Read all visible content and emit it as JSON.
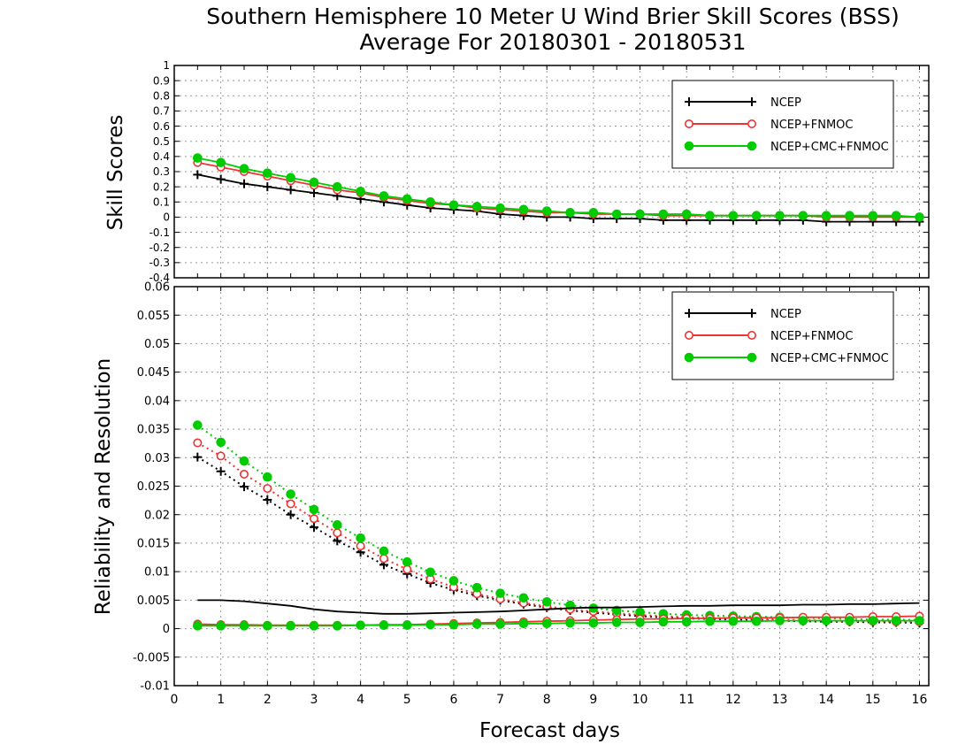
{
  "chart_data": [
    {
      "type": "line",
      "title": "Southern Hemisphere 10 Meter U Wind Brier Skill Scores (BSS)",
      "subtitle": "Average For 20180301 - 20180531",
      "ylabel": "Skill Scores",
      "xlim": [
        0,
        16.2
      ],
      "ylim": [
        -0.4,
        1
      ],
      "yticks": [
        -0.4,
        -0.3,
        -0.2,
        -0.1,
        0,
        0.1,
        0.2,
        0.3,
        0.4,
        0.5,
        0.6,
        0.7,
        0.8,
        0.9,
        1
      ],
      "ytick_labels": [
        "-0.4",
        "-0.3",
        "-0.2",
        "-0.1",
        "0",
        "0.1",
        "0.2",
        "0.3",
        "0.4",
        "0.5",
        "0.6",
        "0.7",
        "0.8",
        "0.9",
        "1"
      ],
      "grid": true,
      "legend_position": "top-right",
      "x": [
        0.5,
        1,
        1.5,
        2,
        2.5,
        3,
        3.5,
        4,
        4.5,
        5,
        5.5,
        6,
        6.5,
        7,
        7.5,
        8,
        8.5,
        9,
        9.5,
        10,
        10.5,
        11,
        11.5,
        12,
        12.5,
        13,
        13.5,
        14,
        14.5,
        15,
        15.5,
        16
      ],
      "series": [
        {
          "name": "NCEP",
          "color": "#000000",
          "marker": "plus",
          "linestyle": "solid",
          "values": [
            0.28,
            0.25,
            0.22,
            0.2,
            0.18,
            0.16,
            0.14,
            0.12,
            0.1,
            0.08,
            0.06,
            0.05,
            0.04,
            0.02,
            0.01,
            0.0,
            0.0,
            -0.01,
            -0.01,
            -0.01,
            -0.02,
            -0.02,
            -0.02,
            -0.02,
            -0.02,
            -0.02,
            -0.02,
            -0.03,
            -0.03,
            -0.03,
            -0.03,
            -0.03
          ]
        },
        {
          "name": "NCEP+FNMOC",
          "color": "#ee3333",
          "marker": "open-circle",
          "linestyle": "solid",
          "values": [
            0.36,
            0.33,
            0.3,
            0.27,
            0.24,
            0.21,
            0.18,
            0.16,
            0.13,
            0.11,
            0.09,
            0.08,
            0.06,
            0.05,
            0.04,
            0.03,
            0.03,
            0.02,
            0.02,
            0.02,
            0.01,
            0.01,
            0.01,
            0.01,
            0.01,
            0.01,
            0.01,
            0.0,
            0.0,
            0.0,
            0.0,
            0.0
          ]
        },
        {
          "name": "NCEP+CMC+FNMOC",
          "color": "#00cc00",
          "marker": "filled-circle",
          "linestyle": "solid",
          "values": [
            0.39,
            0.36,
            0.32,
            0.29,
            0.26,
            0.23,
            0.2,
            0.17,
            0.14,
            0.12,
            0.1,
            0.08,
            0.07,
            0.06,
            0.05,
            0.04,
            0.03,
            0.03,
            0.02,
            0.02,
            0.02,
            0.02,
            0.01,
            0.01,
            0.01,
            0.01,
            0.01,
            0.01,
            0.01,
            0.01,
            0.01,
            0.0
          ]
        }
      ]
    },
    {
      "type": "line",
      "ylabel": "Reliability and Resolution",
      "xlabel": "Forecast days",
      "xlim": [
        0,
        16.2
      ],
      "ylim": [
        -0.01,
        0.06
      ],
      "xticks": [
        0,
        1,
        2,
        3,
        4,
        5,
        6,
        7,
        8,
        9,
        10,
        11,
        12,
        13,
        14,
        15,
        16
      ],
      "xtick_labels": [
        "0",
        "1",
        "2",
        "3",
        "4",
        "5",
        "6",
        "7",
        "8",
        "9",
        "10",
        "11",
        "12",
        "13",
        "14",
        "15",
        "16"
      ],
      "yticks": [
        -0.01,
        -0.005,
        0,
        0.005,
        0.01,
        0.015,
        0.02,
        0.025,
        0.03,
        0.035,
        0.04,
        0.045,
        0.05,
        0.055,
        0.06
      ],
      "ytick_labels": [
        "-0.01",
        "-0.005",
        "0",
        "0.005",
        "0.01",
        "0.015",
        "0.02",
        "0.025",
        "0.03",
        "0.035",
        "0.04",
        "0.045",
        "0.05",
        "0.055",
        "0.06"
      ],
      "grid": true,
      "legend_position": "top-right",
      "x": [
        0.5,
        1,
        1.5,
        2,
        2.5,
        3,
        3.5,
        4,
        4.5,
        5,
        5.5,
        6,
        6.5,
        7,
        7.5,
        8,
        8.5,
        9,
        9.5,
        10,
        10.5,
        11,
        11.5,
        12,
        12.5,
        13,
        13.5,
        14,
        14.5,
        15,
        15.5,
        16
      ],
      "legend": [
        {
          "name": "NCEP",
          "color": "#000000",
          "marker": "plus"
        },
        {
          "name": "NCEP+FNMOC",
          "color": "#ee3333",
          "marker": "open-circle"
        },
        {
          "name": "NCEP+CMC+FNMOC",
          "color": "#00cc00",
          "marker": "filled-circle"
        }
      ],
      "series": [
        {
          "legend_index": 0,
          "color": "#000000",
          "marker": "plus",
          "linestyle": "dotted",
          "values": [
            0.0301,
            0.0276,
            0.0249,
            0.0226,
            0.02,
            0.0178,
            0.0154,
            0.0134,
            0.0112,
            0.0096,
            0.008,
            0.0068,
            0.0058,
            0.005,
            0.0043,
            0.0037,
            0.0032,
            0.0028,
            0.0025,
            0.0022,
            0.002,
            0.0018,
            0.0017,
            0.0016,
            0.0015,
            0.0014,
            0.0013,
            0.0012,
            0.0012,
            0.0011,
            0.0011,
            0.001
          ]
        },
        {
          "legend_index": 1,
          "color": "#ee3333",
          "marker": "open-circle",
          "linestyle": "dotted",
          "values": [
            0.0326,
            0.0303,
            0.0271,
            0.0246,
            0.0219,
            0.0193,
            0.0168,
            0.0145,
            0.0123,
            0.0104,
            0.0087,
            0.0073,
            0.0061,
            0.0052,
            0.0045,
            0.0039,
            0.0034,
            0.003,
            0.0027,
            0.0024,
            0.0022,
            0.002,
            0.0019,
            0.0018,
            0.0017,
            0.0016,
            0.0015,
            0.0014,
            0.0013,
            0.0013,
            0.0012,
            0.0012
          ]
        },
        {
          "legend_index": 2,
          "color": "#00cc00",
          "marker": "filled-circle",
          "linestyle": "dotted",
          "values": [
            0.0357,
            0.0327,
            0.0294,
            0.0266,
            0.0236,
            0.0209,
            0.0182,
            0.0159,
            0.0136,
            0.0117,
            0.0099,
            0.0084,
            0.0072,
            0.0062,
            0.0054,
            0.0047,
            0.0041,
            0.0036,
            0.0032,
            0.0029,
            0.0026,
            0.0024,
            0.0023,
            0.0022,
            0.0021,
            0.002,
            0.0019,
            0.0018,
            0.0017,
            0.0016,
            0.0016,
            0.0015
          ]
        },
        {
          "legend_index": 0,
          "color": "#000000",
          "marker": "none",
          "linestyle": "solid",
          "values": [
            0.005,
            0.005,
            0.0048,
            0.0044,
            0.004,
            0.0034,
            0.003,
            0.0028,
            0.0026,
            0.0026,
            0.0027,
            0.0028,
            0.0029,
            0.003,
            0.0032,
            0.0034,
            0.0036,
            0.0037,
            0.0037,
            0.0038,
            0.0039,
            0.004,
            0.004,
            0.0041,
            0.0041,
            0.0041,
            0.0042,
            0.0042,
            0.0043,
            0.0043,
            0.0044,
            0.0045
          ]
        },
        {
          "legend_index": 1,
          "color": "#ee3333",
          "marker": "open-circle",
          "linestyle": "solid",
          "values": [
            0.0008,
            0.0007,
            0.0007,
            0.0006,
            0.0006,
            0.0006,
            0.0006,
            0.0006,
            0.0007,
            0.0007,
            0.0008,
            0.0009,
            0.001,
            0.0011,
            0.0012,
            0.0013,
            0.0014,
            0.0015,
            0.0016,
            0.0017,
            0.0017,
            0.0018,
            0.0018,
            0.0019,
            0.0019,
            0.0019,
            0.002,
            0.002,
            0.002,
            0.0021,
            0.0021,
            0.0022
          ]
        },
        {
          "legend_index": 2,
          "color": "#00cc00",
          "marker": "filled-circle",
          "linestyle": "solid",
          "values": [
            0.0005,
            0.0005,
            0.0005,
            0.0005,
            0.0005,
            0.0005,
            0.0005,
            0.0006,
            0.0006,
            0.0006,
            0.0007,
            0.0007,
            0.0008,
            0.0008,
            0.0009,
            0.0009,
            0.001,
            0.001,
            0.0011,
            0.0011,
            0.0012,
            0.0012,
            0.0013,
            0.0013,
            0.0013,
            0.0014,
            0.0014,
            0.0014,
            0.0014,
            0.0014,
            0.0014,
            0.0014
          ]
        }
      ]
    }
  ]
}
